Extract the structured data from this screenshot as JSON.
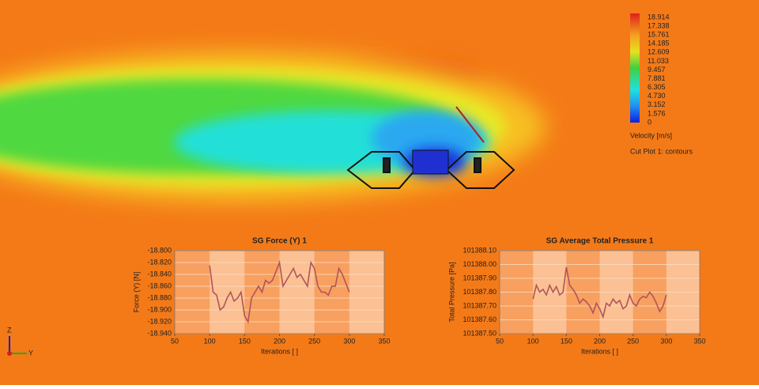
{
  "legend": {
    "ticks": [
      "18.914",
      "17.338",
      "15.761",
      "14.185",
      "12.609",
      "11.033",
      "9.457",
      "7.881",
      "6.305",
      "4.730",
      "3.152",
      "1.576",
      "0"
    ],
    "unit": "Velocity [m/s]",
    "plot": "Cut Plot 1: contours"
  },
  "triad": {
    "z": "Z",
    "y": "Y"
  },
  "chart_data": [
    {
      "type": "line",
      "title": "SG Force (Y) 1",
      "x_label": "Iterations [ ]",
      "y_label": "Force (Y) [N]",
      "xlim": [
        50,
        350
      ],
      "xticks": [
        50,
        100,
        150,
        200,
        250,
        300,
        350
      ],
      "ylim": [
        -18.94,
        -18.8
      ],
      "yticks": [
        {
          "value": -18.94,
          "label": "-18.940"
        },
        {
          "value": -18.92,
          "label": "-18.920"
        },
        {
          "value": -18.9,
          "label": "-18.900"
        },
        {
          "value": -18.88,
          "label": "-18.880"
        },
        {
          "value": -18.86,
          "label": "-18.860"
        },
        {
          "value": -18.84,
          "label": "-18.840"
        },
        {
          "value": -18.82,
          "label": "-18.820"
        },
        {
          "value": -18.8,
          "label": "-18.800"
        }
      ],
      "grid": true,
      "x": [
        100,
        105,
        110,
        115,
        120,
        125,
        130,
        135,
        140,
        145,
        150,
        155,
        160,
        165,
        170,
        175,
        180,
        185,
        190,
        195,
        200,
        205,
        210,
        215,
        220,
        225,
        230,
        235,
        240,
        245,
        250,
        255,
        260,
        265,
        270,
        275,
        280,
        285,
        290,
        295,
        300
      ],
      "series": [
        {
          "color": "#b0555a",
          "values": [
            -18.825,
            -18.87,
            -18.875,
            -18.9,
            -18.895,
            -18.88,
            -18.87,
            -18.885,
            -18.88,
            -18.87,
            -18.91,
            -18.92,
            -18.88,
            -18.87,
            -18.86,
            -18.87,
            -18.85,
            -18.855,
            -18.85,
            -18.835,
            -18.82,
            -18.86,
            -18.85,
            -18.84,
            -18.83,
            -18.845,
            -18.84,
            -18.85,
            -18.86,
            -18.82,
            -18.83,
            -18.86,
            -18.87,
            -18.87,
            -18.875,
            -18.86,
            -18.86,
            -18.83,
            -18.84,
            -18.855,
            -18.87
          ]
        }
      ]
    },
    {
      "type": "line",
      "title": "SG Average Total Pressure 1",
      "x_label": "Iterations [ ]",
      "y_label": "Total Pressure [Pa]",
      "xlim": [
        50,
        350
      ],
      "xticks": [
        50,
        100,
        150,
        200,
        250,
        300,
        350
      ],
      "ylim": [
        101387.5,
        101388.1
      ],
      "yticks": [
        {
          "value": 101387.5,
          "label": "101387.50"
        },
        {
          "value": 101387.6,
          "label": "101387.60"
        },
        {
          "value": 101387.7,
          "label": "101387.70"
        },
        {
          "value": 101387.8,
          "label": "101387.80"
        },
        {
          "value": 101387.9,
          "label": "101387.90"
        },
        {
          "value": 101388.0,
          "label": "101388.00"
        },
        {
          "value": 101388.1,
          "label": "101388.10"
        }
      ],
      "grid": true,
      "x": [
        100,
        105,
        110,
        115,
        120,
        125,
        130,
        135,
        140,
        145,
        150,
        155,
        160,
        165,
        170,
        175,
        180,
        185,
        190,
        195,
        200,
        205,
        210,
        215,
        220,
        225,
        230,
        235,
        240,
        245,
        250,
        255,
        260,
        265,
        270,
        275,
        280,
        285,
        290,
        295,
        300
      ],
      "series": [
        {
          "color": "#b0555a",
          "values": [
            101387.75,
            101387.85,
            101387.8,
            101387.82,
            101387.78,
            101387.85,
            101387.8,
            101387.84,
            101387.78,
            101387.8,
            101387.98,
            101387.85,
            101387.82,
            101387.78,
            101387.72,
            101387.75,
            101387.73,
            101387.7,
            101387.65,
            101387.72,
            101387.68,
            101387.62,
            101387.72,
            101387.7,
            101387.75,
            101387.72,
            101387.74,
            101387.68,
            101387.7,
            101387.78,
            101387.72,
            101387.7,
            101387.75,
            101387.77,
            101387.76,
            101387.8,
            101387.77,
            101387.72,
            101387.66,
            101387.7,
            101387.78
          ]
        }
      ]
    }
  ]
}
